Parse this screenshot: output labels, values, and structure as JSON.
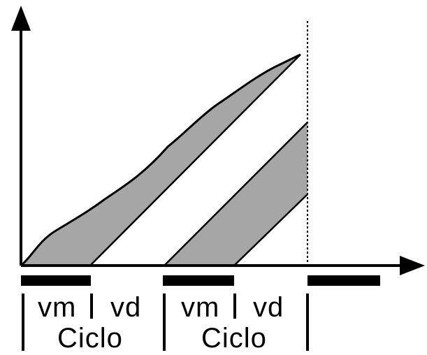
{
  "labels": {
    "phase_vm": "vm",
    "phase_vd": "vd",
    "cycle": "Ciclo"
  },
  "colors": {
    "fill": "#a6a6a6",
    "stroke": "#000000",
    "background": "#ffffff"
  }
}
